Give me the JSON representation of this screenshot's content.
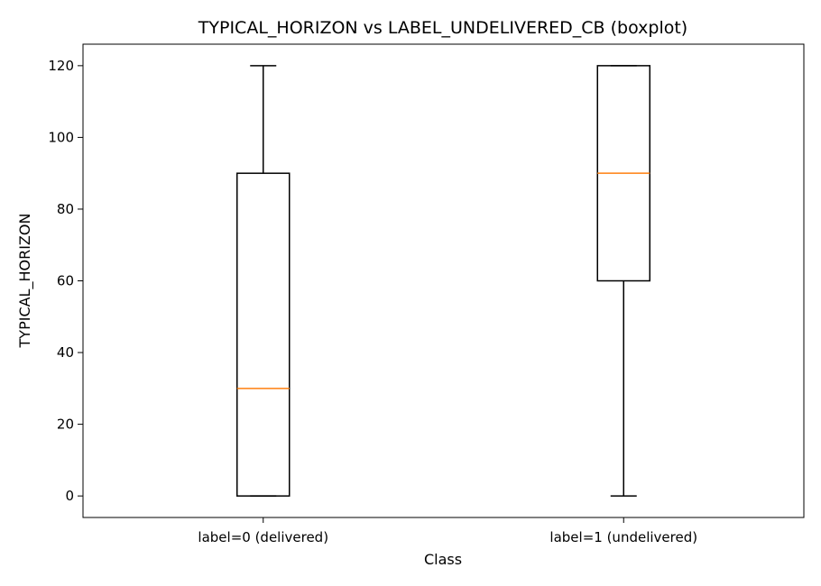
{
  "chart_data": {
    "type": "boxplot",
    "title": "TYPICAL_HORIZON vs LABEL_UNDELIVERED_CB (boxplot)",
    "xlabel": "Class",
    "ylabel": "TYPICAL_HORIZON",
    "ylim": [
      -6,
      126
    ],
    "yticks": [
      0,
      20,
      40,
      60,
      80,
      100,
      120
    ],
    "categories": [
      "label=0 (delivered)",
      "label=1 (undelivered)"
    ],
    "boxes": [
      {
        "category": "label=0 (delivered)",
        "whisker_low": 0,
        "q1": 0,
        "median": 30,
        "q3": 90,
        "whisker_high": 120
      },
      {
        "category": "label=1 (undelivered)",
        "whisker_low": 0,
        "q1": 60,
        "median": 90,
        "q3": 120,
        "whisker_high": 120
      }
    ],
    "grid": false,
    "colors": {
      "box": "#000000",
      "median": "#ff7f0e"
    }
  }
}
